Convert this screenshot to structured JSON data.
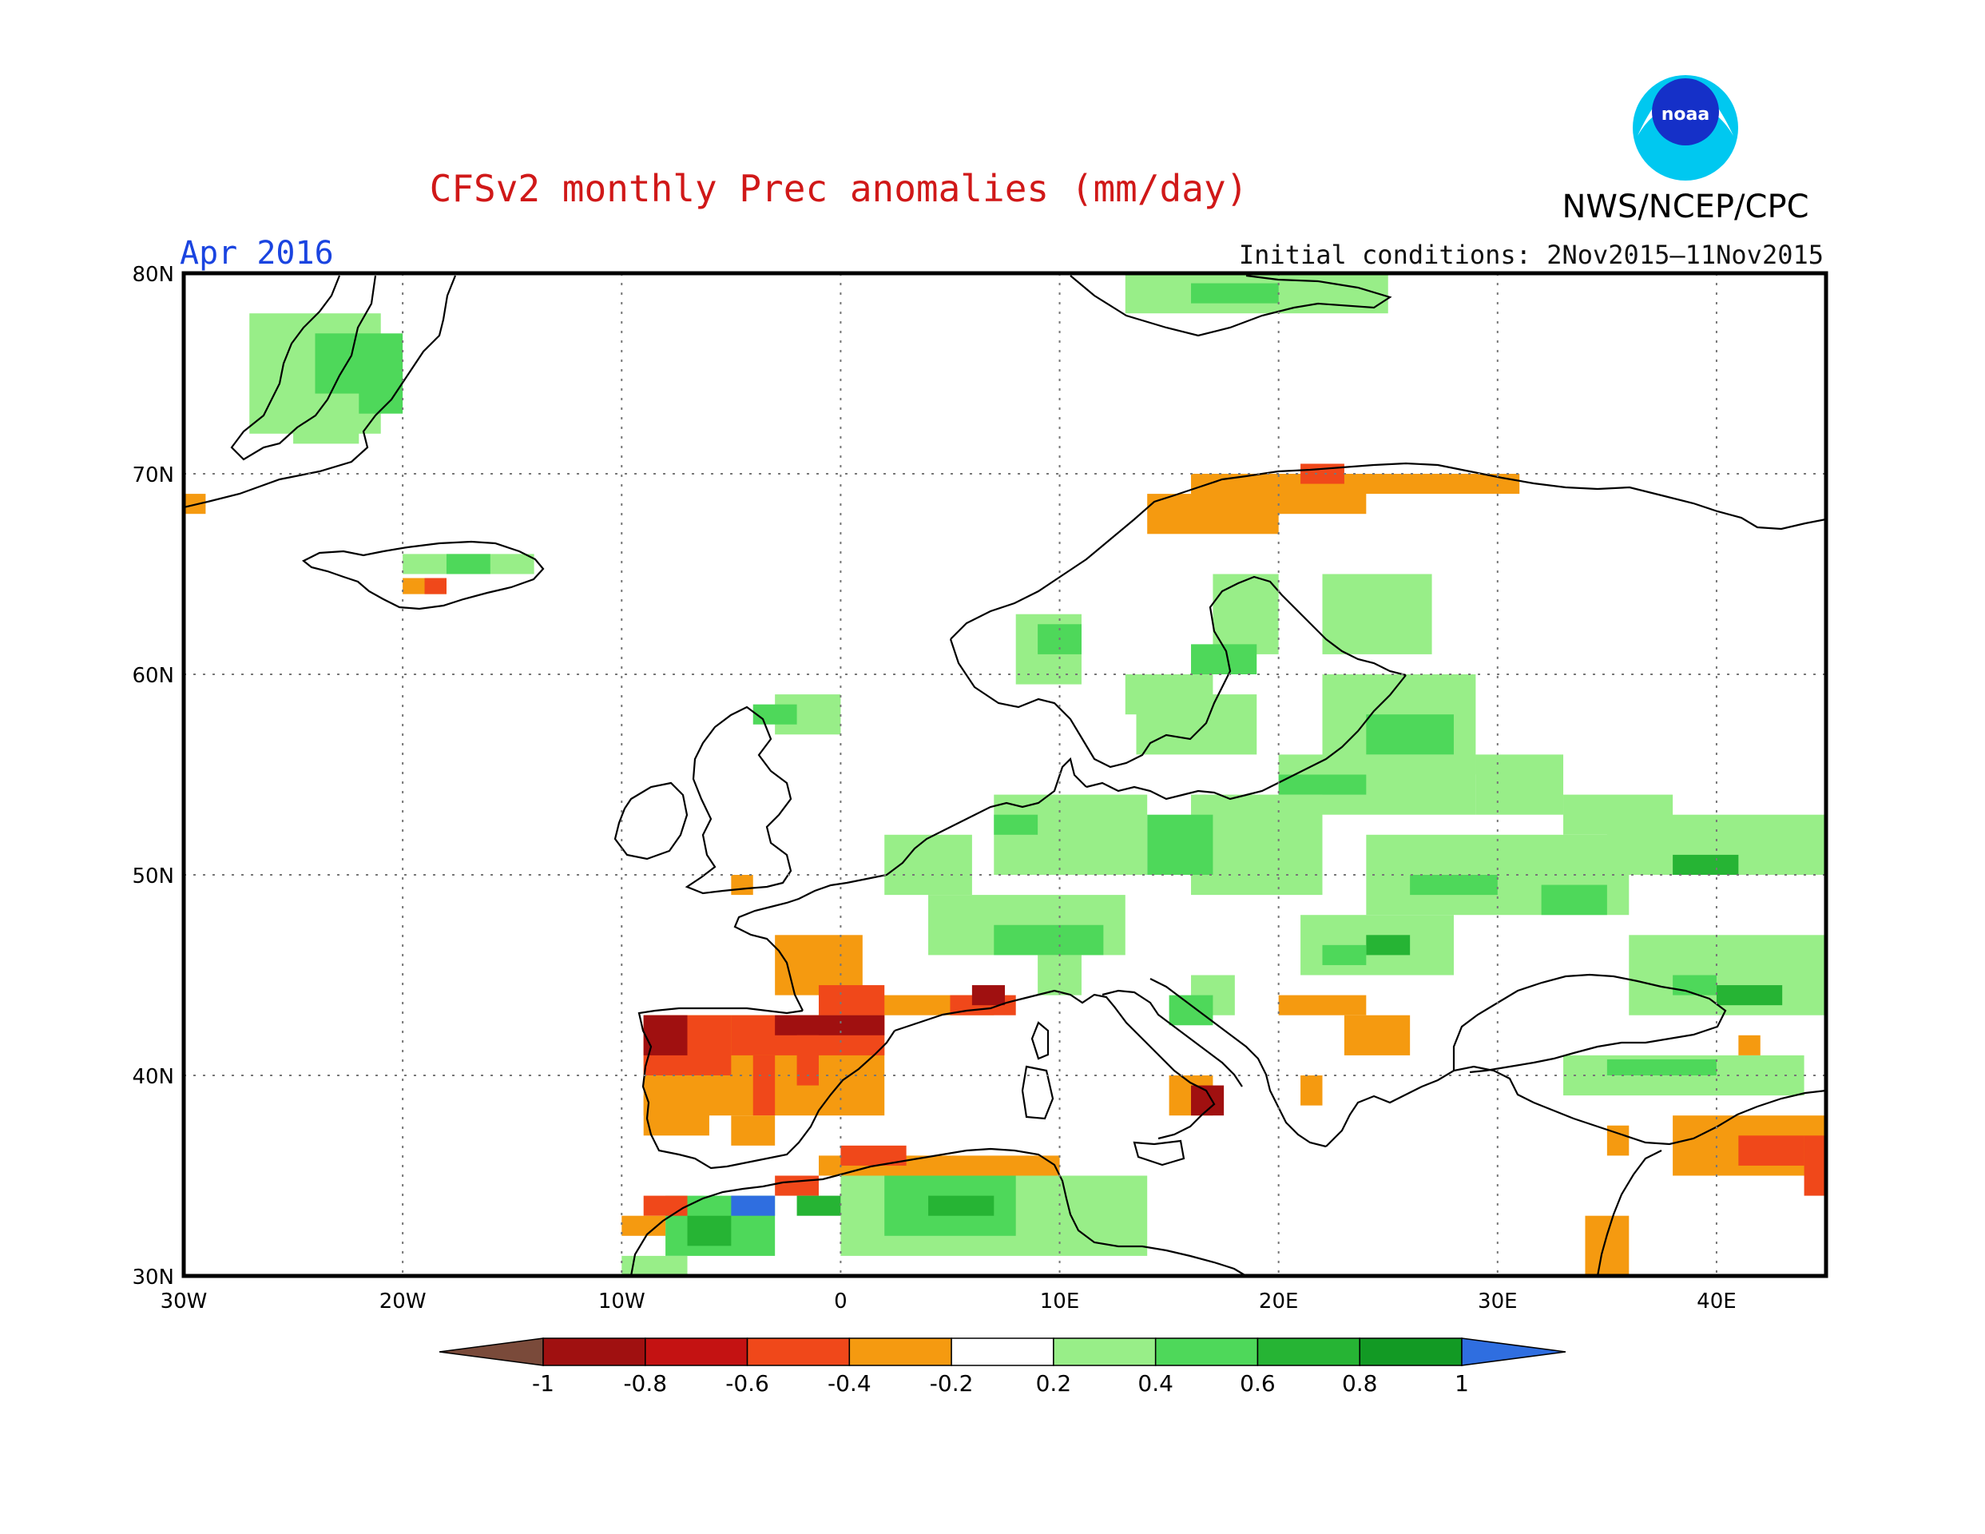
{
  "header": {
    "title": "CFSv2 monthly Prec anomalies (mm/day)",
    "month": "Apr 2016",
    "initial_conditions": "Initial conditions: 2Nov2015–11Nov2015",
    "org": "NWS/NCEP/CPC",
    "logo_text": "noaa"
  },
  "map": {
    "lon_range": [
      -30,
      45
    ],
    "lat_range": [
      30,
      80
    ],
    "grid": "dotted",
    "lat_labels": [
      "30N",
      "40N",
      "50N",
      "60N",
      "70N",
      "80N"
    ],
    "lon_labels": [
      "30W",
      "20W",
      "10W",
      "0",
      "10E",
      "20E",
      "30E",
      "40E"
    ]
  },
  "colorbar": {
    "tick_labels": [
      "-1",
      "-0.8",
      "-0.6",
      "-0.4",
      "-0.2",
      "0.2",
      "0.4",
      "0.6",
      "0.8",
      "1"
    ],
    "colors": [
      "#7a4a3a",
      "#a01010",
      "#c41212",
      "#f0481a",
      "#f59a10",
      "#ffffff",
      "#98ee88",
      "#4ed85a",
      "#26b434",
      "#129a24",
      "#2f6ee0"
    ]
  }
}
